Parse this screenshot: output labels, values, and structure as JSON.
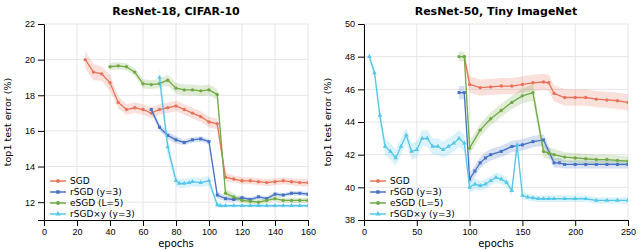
{
  "chart_data": [
    {
      "type": "line",
      "title": "ResNet-18, CIFAR-10",
      "x_label": "epochs",
      "y_label": "top1 test error (%)",
      "xlim": [
        0,
        160
      ],
      "ylim": [
        11,
        22
      ],
      "xticks": [
        0,
        20,
        40,
        60,
        80,
        100,
        120,
        140,
        160
      ],
      "yticks": [
        12,
        14,
        16,
        18,
        20,
        22
      ],
      "grid": true,
      "legend": "lower left",
      "series": [
        {
          "name": "SGD",
          "color": "#e8735a",
          "marker": "circle",
          "x": [
            25,
            30,
            35,
            40,
            45,
            50,
            55,
            60,
            65,
            70,
            75,
            80,
            85,
            90,
            95,
            100,
            105,
            110,
            115,
            120,
            125,
            130,
            135,
            140,
            145,
            150,
            155,
            160
          ],
          "values": [
            20.0,
            19.3,
            19.2,
            18.7,
            17.6,
            17.2,
            17.3,
            17.2,
            17.0,
            17.2,
            17.3,
            17.4,
            17.2,
            17.0,
            16.8,
            16.5,
            16.4,
            13.4,
            13.3,
            13.2,
            13.2,
            13.15,
            13.1,
            13.15,
            13.2,
            13.15,
            13.1,
            13.1
          ],
          "std": [
            0.5,
            0.45,
            0.4,
            0.45,
            0.35,
            0.3,
            0.3,
            0.3,
            0.3,
            0.3,
            0.3,
            0.3,
            0.3,
            0.3,
            0.3,
            0.3,
            0.3,
            0.25,
            0.2,
            0.2,
            0.2,
            0.2,
            0.2,
            0.2,
            0.2,
            0.2,
            0.2,
            0.2
          ]
        },
        {
          "name": "rSGD (y=3)",
          "color": "#4472c4",
          "marker": "square",
          "x": [
            65,
            70,
            75,
            80,
            85,
            90,
            95,
            100,
            105,
            110,
            115,
            120,
            125,
            130,
            135,
            140,
            145,
            150,
            155,
            160
          ],
          "values": [
            17.2,
            16.2,
            15.75,
            15.5,
            15.35,
            15.5,
            15.55,
            15.4,
            12.4,
            12.2,
            12.15,
            12.25,
            12.15,
            12.3,
            12.2,
            12.45,
            12.4,
            12.5,
            12.5,
            12.45
          ],
          "std": [
            0.2,
            0.2,
            0.2,
            0.2,
            0.15,
            0.15,
            0.15,
            0.15,
            0.2,
            0.15,
            0.12,
            0.12,
            0.12,
            0.12,
            0.12,
            0.12,
            0.12,
            0.12,
            0.12,
            0.12
          ]
        },
        {
          "name": "eSGD (L=5)",
          "color": "#70a945",
          "marker": "circle",
          "x": [
            40,
            45,
            50,
            55,
            60,
            65,
            70,
            75,
            80,
            85,
            90,
            95,
            100,
            105,
            110,
            115,
            120,
            125,
            130,
            135,
            140,
            145,
            150,
            155,
            160
          ],
          "values": [
            19.6,
            19.65,
            19.6,
            19.3,
            18.65,
            18.6,
            18.65,
            18.85,
            18.4,
            18.3,
            18.3,
            18.25,
            18.3,
            18.05,
            12.5,
            12.3,
            12.1,
            12.05,
            12.0,
            12.1,
            12.2,
            12.1,
            12.1,
            12.1,
            12.1
          ],
          "std": [
            0.2,
            0.2,
            0.2,
            0.2,
            0.25,
            0.25,
            0.25,
            0.3,
            0.3,
            0.3,
            0.3,
            0.3,
            0.3,
            0.3,
            0.25,
            0.2,
            0.15,
            0.15,
            0.15,
            0.15,
            0.15,
            0.15,
            0.15,
            0.15,
            0.15
          ]
        },
        {
          "name": "rSGD×y (y=3)",
          "color": "#56c7e8",
          "marker": "triangle",
          "x": [
            70,
            75,
            80,
            82,
            85,
            88,
            90,
            95,
            100,
            105,
            107,
            110,
            115,
            120,
            125,
            130,
            135,
            140,
            145,
            150,
            155,
            160
          ],
          "values": [
            19.0,
            15.1,
            13.2,
            13.05,
            13.05,
            13.1,
            13.15,
            13.1,
            13.2,
            11.85,
            11.8,
            11.8,
            11.8,
            11.8,
            11.8,
            11.8,
            11.8,
            11.8,
            11.8,
            11.8,
            11.8,
            11.8
          ],
          "std": [
            0.6,
            0.55,
            0.3,
            0.25,
            0.25,
            0.25,
            0.25,
            0.25,
            0.3,
            0.15,
            0.12,
            0.1,
            0.1,
            0.1,
            0.1,
            0.1,
            0.1,
            0.1,
            0.1,
            0.1,
            0.1,
            0.1
          ]
        }
      ]
    },
    {
      "type": "line",
      "title": "ResNet-50, Tiny ImageNet",
      "x_label": "epochs",
      "y_label": "top1 test error (%)",
      "xlim": [
        0,
        250
      ],
      "ylim": [
        38,
        50
      ],
      "xticks": [
        0,
        50,
        100,
        150,
        200,
        250
      ],
      "yticks": [
        38,
        40,
        42,
        44,
        46,
        48,
        50
      ],
      "grid": true,
      "legend": "lower left",
      "series": [
        {
          "name": "SGD",
          "color": "#e8735a",
          "marker": "circle",
          "x": [
            95,
            100,
            110,
            120,
            130,
            140,
            150,
            160,
            170,
            175,
            180,
            190,
            200,
            210,
            220,
            230,
            240,
            250
          ],
          "values": [
            48.0,
            46.3,
            46.1,
            46.15,
            46.2,
            46.2,
            46.3,
            46.4,
            46.45,
            46.4,
            45.75,
            45.5,
            45.5,
            45.5,
            45.4,
            45.35,
            45.3,
            45.2
          ],
          "std": [
            0.3,
            0.5,
            0.5,
            0.5,
            0.5,
            0.5,
            0.5,
            0.5,
            0.5,
            0.5,
            0.5,
            0.5,
            0.5,
            0.5,
            0.5,
            0.5,
            0.5,
            0.5
          ]
        },
        {
          "name": "rSGD (y=3)",
          "color": "#4472c4",
          "marker": "square",
          "x": [
            90,
            95,
            100,
            105,
            110,
            115,
            120,
            130,
            140,
            150,
            160,
            170,
            180,
            185,
            190,
            200,
            210,
            220,
            230,
            240,
            250
          ],
          "values": [
            45.8,
            45.8,
            40.5,
            41.0,
            41.5,
            41.8,
            42.0,
            42.2,
            42.5,
            42.6,
            42.8,
            42.9,
            41.5,
            41.5,
            41.4,
            41.4,
            41.4,
            41.4,
            41.4,
            41.4,
            41.4
          ],
          "std": [
            0.4,
            0.4,
            0.35,
            0.35,
            0.35,
            0.35,
            0.35,
            0.35,
            0.35,
            0.35,
            0.35,
            0.35,
            0.3,
            0.3,
            0.25,
            0.25,
            0.25,
            0.25,
            0.25,
            0.25,
            0.25
          ]
        },
        {
          "name": "eSGD (L=5)",
          "color": "#70a945",
          "marker": "circle",
          "x": [
            90,
            95,
            100,
            110,
            120,
            130,
            140,
            150,
            160,
            170,
            175,
            180,
            190,
            200,
            210,
            220,
            230,
            240,
            250
          ],
          "values": [
            48.0,
            48.0,
            42.4,
            43.5,
            44.2,
            44.7,
            45.2,
            45.6,
            45.8,
            42.2,
            42.1,
            42.0,
            41.85,
            41.8,
            41.75,
            41.7,
            41.7,
            41.65,
            41.6
          ],
          "std": [
            0.3,
            0.3,
            0.4,
            0.4,
            0.4,
            0.4,
            0.4,
            0.45,
            0.5,
            0.4,
            0.35,
            0.35,
            0.3,
            0.3,
            0.3,
            0.3,
            0.3,
            0.3,
            0.3
          ]
        },
        {
          "name": "rSGD×y (y=3)",
          "color": "#56c7e8",
          "marker": "triangle",
          "x": [
            5,
            10,
            15,
            20,
            25,
            30,
            35,
            40,
            45,
            50,
            55,
            60,
            65,
            70,
            75,
            80,
            85,
            90,
            95,
            100,
            105,
            110,
            115,
            120,
            125,
            130,
            135,
            140,
            145,
            150,
            155,
            160,
            165,
            170,
            175,
            180,
            190,
            200,
            210,
            220,
            230,
            240,
            250
          ],
          "values": [
            48.0,
            47.0,
            44.4,
            42.5,
            42.2,
            41.8,
            42.5,
            43.2,
            42.2,
            42.3,
            43.0,
            43.0,
            42.5,
            42.5,
            42.3,
            42.5,
            42.7,
            43.0,
            42.7,
            40.0,
            40.2,
            40.1,
            40.2,
            40.4,
            40.6,
            40.5,
            40.3,
            39.8,
            42.6,
            39.5,
            39.4,
            39.35,
            39.3,
            39.3,
            39.3,
            39.3,
            39.3,
            39.3,
            39.3,
            39.2,
            39.2,
            39.2,
            39.2
          ],
          "std": [
            0.3,
            0.35,
            0.5,
            0.5,
            0.5,
            0.5,
            0.5,
            0.5,
            0.5,
            0.5,
            0.5,
            0.5,
            0.5,
            0.5,
            0.5,
            0.5,
            0.5,
            0.5,
            0.5,
            0.35,
            0.35,
            0.3,
            0.3,
            0.3,
            0.3,
            0.3,
            0.3,
            0.3,
            0.4,
            0.25,
            0.2,
            0.2,
            0.2,
            0.2,
            0.2,
            0.2,
            0.2,
            0.2,
            0.2,
            0.2,
            0.2,
            0.2,
            0.2
          ]
        }
      ]
    }
  ]
}
